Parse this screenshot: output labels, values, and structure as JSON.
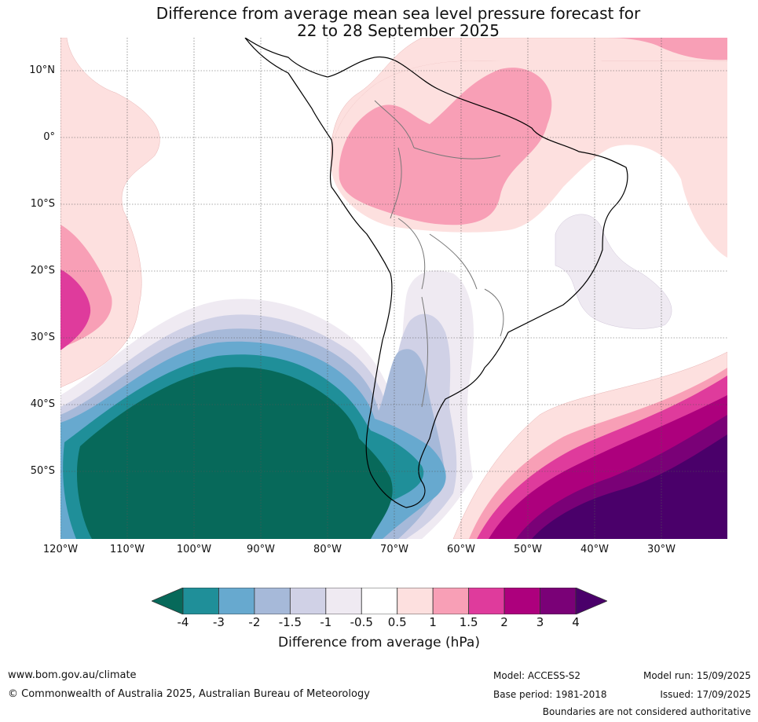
{
  "title_line1": "Difference from average mean sea level pressure forecast for",
  "title_line2": "22 to 28 September 2025",
  "lat_labels": [
    "10°N",
    "0°",
    "10°S",
    "20°S",
    "30°S",
    "40°S",
    "50°S"
  ],
  "lon_labels": [
    "120°W",
    "110°W",
    "100°W",
    "90°W",
    "80°W",
    "70°W",
    "60°W",
    "50°W",
    "40°W",
    "30°W"
  ],
  "colorbar": {
    "title": "Difference from average (hPa)",
    "tick_labels": [
      "-4",
      "-3",
      "-2",
      "-1.5",
      "-1",
      "-0.5",
      "0.5",
      "1",
      "1.5",
      "2",
      "3",
      "4"
    ],
    "colors": {
      "below_min": "#07695a",
      "bins": [
        "#1f8f99",
        "#67a9cf",
        "#a6b9d9",
        "#d0d1e6",
        "#efeaf2",
        "#ffffff",
        "#fde0df",
        "#f89fb6",
        "#df3b9c",
        "#ad007d",
        "#7a0177"
      ],
      "above_max": "#4a006a"
    }
  },
  "footer": {
    "website": "www.bom.gov.au/climate",
    "copyright": "© Commonwealth of Australia 2025, Australian Bureau of Meteorology",
    "model": "Model: ACCESS-S2",
    "base_period": "Base period: 1981-2018",
    "model_run": "Model run: 15/09/2025",
    "issued": "Issued: 17/09/2025",
    "disclaimer": "Boundaries are not considered authoritative"
  }
}
